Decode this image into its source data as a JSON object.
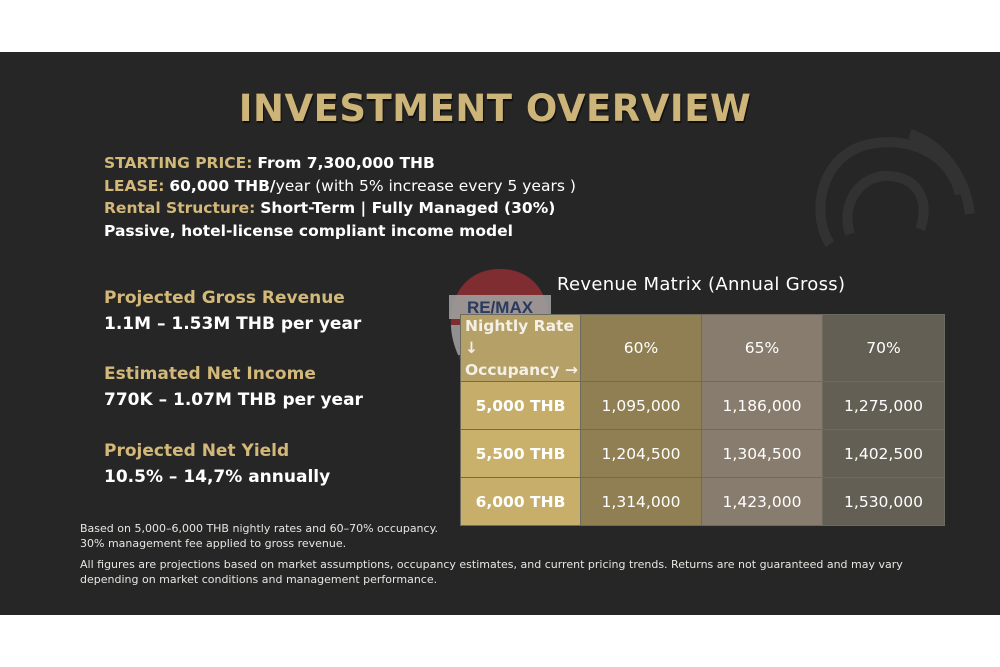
{
  "title": "INVESTMENT OVERVIEW",
  "info": {
    "starting_price_label": "STARTING PRICE:",
    "starting_price_value": "From 7,300,000 THB",
    "lease_label": "LEASE:",
    "lease_value": "60,000 THB/",
    "lease_suffix": "year (with 5% increase every 5 years )",
    "rental_label": "Rental Structure:",
    "rental_value": "Short-Term | Fully Managed (30%)",
    "passive_line": "Passive, hotel-license compliant income model"
  },
  "metrics": [
    {
      "label": "Projected Gross Revenue",
      "value": "1.1M – 1.53M THB per year"
    },
    {
      "label": "Estimated Net Income",
      "value": "770K – 1.07M THB per year"
    },
    {
      "label": "Projected Net Yield",
      "value": "10.5% – 14,7% annually"
    }
  ],
  "watermark_logo_text": "RE/MAX",
  "matrix": {
    "title": "Revenue Matrix (Annual Gross)",
    "corner_line1": "Nightly Rate ↓",
    "corner_line2": "Occupancy →",
    "columns": [
      "60%",
      "65%",
      "70%"
    ],
    "rows": [
      {
        "rate": "5,000 THB",
        "values": [
          "1,095,000",
          "1,186,000",
          "1,275,000"
        ]
      },
      {
        "rate": "5,500 THB",
        "values": [
          "1,204,500",
          "1,304,500",
          "1,402,500"
        ]
      },
      {
        "rate": "6,000 THB",
        "values": [
          "1,314,000",
          "1,423,000",
          "1,530,000"
        ]
      }
    ]
  },
  "notes": {
    "line1": "Based on 5,000–6,000 THB nightly rates and 60–70% occupancy.",
    "line2": "30% management fee applied to gross revenue.",
    "line3": "All figures are projections based on market assumptions, occupancy estimates, and current pricing trends. Returns are not guaranteed and may vary",
    "line4": "depending on market conditions and management performance."
  },
  "colors": {
    "background": "#272626",
    "gold": "#d2b879",
    "title_gold": "#cdb57a",
    "remax_red": "#c8343a",
    "remax_blue": "#2a4d8f"
  }
}
